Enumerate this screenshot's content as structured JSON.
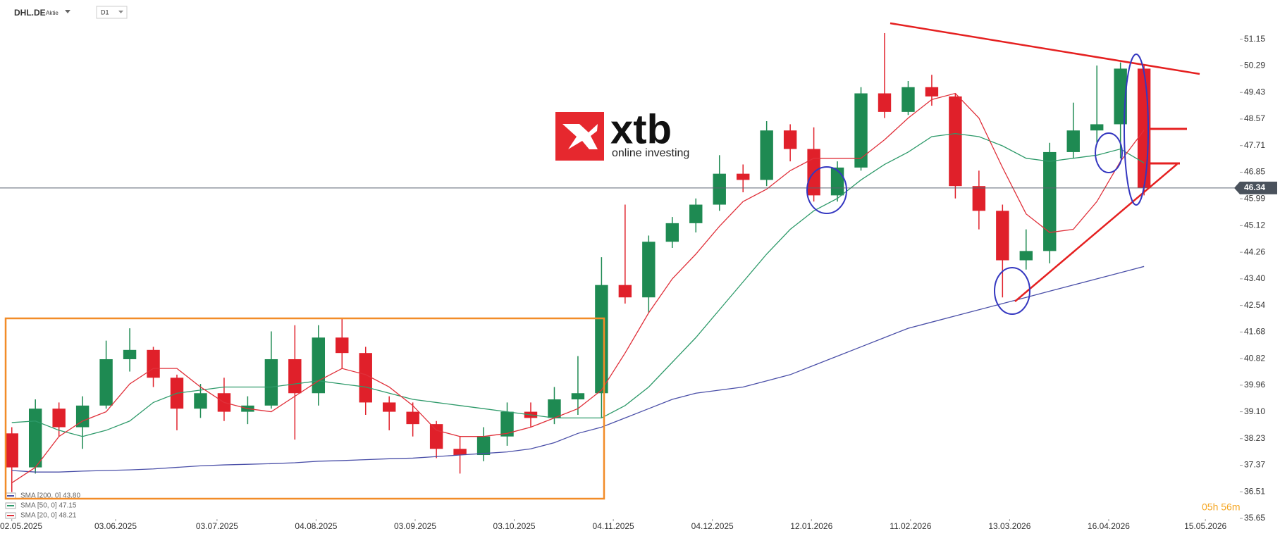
{
  "header": {
    "symbol": "DHL.DE",
    "kind": "Aktie",
    "interval": "D1"
  },
  "logo": {
    "name": "xtb",
    "tagline": "online investing"
  },
  "countdown": "05h 56m",
  "chart_data": {
    "type": "candlestick",
    "x": [
      0.5,
      1.5,
      2.5,
      3.5,
      4.5,
      5.5,
      6.5,
      7.5,
      8.5,
      9.5,
      10.5,
      11.5,
      12.5,
      13.5,
      14.5,
      15.5,
      16.5,
      17.5,
      18.5,
      19.5,
      20.5,
      21.5,
      22.5,
      23.5,
      24.5,
      25.5,
      26.5,
      27.5,
      28.5,
      29.5,
      30.5,
      31.5,
      32.5,
      33.5,
      34.5,
      35.5,
      36.5,
      37.5,
      38.5,
      39.5,
      40.5,
      41.5,
      42.5,
      43.5,
      44.5,
      45.5,
      46.5,
      47.5,
      48.5
    ],
    "open": [
      38.4,
      37.3,
      39.2,
      38.6,
      39.3,
      40.8,
      41.1,
      40.2,
      39.2,
      39.7,
      39.1,
      39.3,
      40.8,
      39.7,
      41.5,
      41.0,
      39.4,
      39.1,
      38.7,
      37.9,
      37.7,
      38.3,
      39.1,
      38.9,
      39.5,
      39.7,
      43.2,
      42.8,
      44.6,
      45.2,
      45.8,
      46.8,
      46.6,
      48.2,
      47.6,
      46.1,
      47.0,
      49.4,
      48.8,
      49.6,
      49.3,
      46.4,
      45.6,
      44.0,
      44.3,
      47.5,
      48.2,
      48.4,
      50.2
    ],
    "high": [
      38.6,
      39.5,
      39.4,
      39.6,
      41.4,
      41.8,
      41.2,
      40.3,
      40.0,
      40.2,
      39.6,
      41.7,
      41.9,
      41.9,
      42.1,
      41.2,
      39.6,
      39.4,
      38.8,
      38.3,
      38.6,
      39.4,
      39.4,
      39.9,
      40.9,
      44.1,
      45.8,
      44.8,
      45.4,
      46.0,
      47.4,
      47.1,
      48.5,
      48.4,
      48.3,
      47.2,
      49.6,
      51.35,
      49.8,
      50.0,
      49.4,
      46.9,
      45.8,
      45.0,
      47.8,
      49.1,
      50.3,
      50.4,
      50.3
    ],
    "low": [
      36.5,
      37.1,
      38.3,
      37.9,
      39.2,
      40.4,
      39.9,
      38.5,
      38.9,
      38.8,
      38.7,
      39.2,
      38.2,
      39.3,
      40.5,
      39.0,
      38.5,
      38.3,
      37.6,
      37.1,
      37.5,
      38.0,
      38.6,
      38.7,
      39.0,
      38.9,
      42.6,
      42.3,
      44.4,
      44.9,
      45.6,
      46.2,
      46.4,
      47.2,
      45.9,
      45.9,
      46.9,
      48.6,
      48.7,
      49.0,
      46.0,
      45.0,
      42.8,
      43.7,
      43.9,
      47.3,
      47.8,
      47.3,
      46.1
    ],
    "close": [
      37.3,
      39.2,
      38.6,
      39.3,
      40.8,
      41.1,
      40.2,
      39.2,
      39.7,
      39.1,
      39.3,
      40.8,
      39.7,
      41.5,
      41.0,
      39.4,
      39.1,
      38.7,
      37.9,
      37.7,
      38.3,
      39.1,
      38.9,
      39.5,
      39.7,
      43.2,
      42.8,
      44.6,
      45.2,
      45.8,
      46.8,
      46.6,
      48.2,
      47.6,
      46.1,
      47.0,
      49.4,
      48.8,
      49.6,
      49.3,
      46.4,
      45.6,
      44.0,
      44.3,
      47.5,
      48.2,
      48.4,
      50.2,
      46.34
    ],
    "up_color": "#1e8a52",
    "down_color": "#e0202a",
    "series": [
      {
        "name": "SMA [200, 0] 43.80",
        "color": "#4a4fa8",
        "values": [
          37.2,
          37.15,
          37.15,
          37.18,
          37.2,
          37.22,
          37.25,
          37.3,
          37.35,
          37.38,
          37.4,
          37.42,
          37.45,
          37.5,
          37.52,
          37.55,
          37.58,
          37.6,
          37.65,
          37.7,
          37.75,
          37.8,
          37.9,
          38.1,
          38.4,
          38.6,
          38.9,
          39.2,
          39.5,
          39.7,
          39.8,
          39.9,
          40.1,
          40.3,
          40.6,
          40.9,
          41.2,
          41.5,
          41.8,
          42.0,
          42.2,
          42.4,
          42.6,
          42.8,
          43.0,
          43.2,
          43.4,
          43.6,
          43.8
        ]
      },
      {
        "name": "SMA [50, 0] 47.15",
        "color": "#2e9a6a",
        "values": [
          38.75,
          38.8,
          38.5,
          38.3,
          38.5,
          38.8,
          39.4,
          39.7,
          39.8,
          39.9,
          39.9,
          39.9,
          40.0,
          40.1,
          40.0,
          39.9,
          39.7,
          39.5,
          39.4,
          39.3,
          39.2,
          39.1,
          39.0,
          38.9,
          38.9,
          38.9,
          39.3,
          39.9,
          40.7,
          41.5,
          42.4,
          43.3,
          44.2,
          45.0,
          45.6,
          46.0,
          46.6,
          47.1,
          47.5,
          48.0,
          48.1,
          48.0,
          47.7,
          47.3,
          47.2,
          47.3,
          47.4,
          47.6,
          47.15
        ]
      },
      {
        "name": "SMA [20, 0] 48.21",
        "color": "#e0303a",
        "values": [
          36.8,
          37.3,
          38.3,
          38.8,
          39.1,
          40.0,
          40.5,
          40.5,
          39.9,
          39.4,
          39.2,
          39.1,
          39.6,
          40.1,
          40.5,
          40.3,
          39.9,
          39.3,
          38.5,
          38.3,
          38.3,
          38.4,
          38.6,
          38.9,
          39.2,
          39.8,
          41.0,
          42.3,
          43.4,
          44.2,
          45.1,
          45.9,
          46.3,
          46.9,
          47.3,
          47.3,
          47.3,
          47.9,
          48.6,
          49.2,
          49.4,
          48.6,
          47.0,
          45.5,
          44.9,
          45.0,
          45.9,
          47.2,
          48.21
        ]
      }
    ],
    "last_price": 46.34,
    "ylim": [
      35.65,
      52.42
    ],
    "yticks": [
      51.15,
      50.29,
      49.43,
      48.57,
      47.71,
      46.85,
      45.99,
      45.12,
      44.26,
      {
        "value": 43.4,
        "label": "43.40"
      },
      42.54,
      41.68,
      40.82,
      39.96,
      {
        "value": 39.1,
        "label": "39.10"
      },
      38.23,
      37.37,
      36.51,
      35.65
    ],
    "xlim": [
      0,
      52.5
    ],
    "xticks": [
      {
        "value": 0.5,
        "label": "02.05.2025"
      },
      {
        "value": 4.9,
        "label": "03.06.2025"
      },
      {
        "value": 9.2,
        "label": "03.07.2025"
      },
      {
        "value": 13.4,
        "label": "04.08.2025"
      },
      {
        "value": 17.6,
        "label": "03.09.2025"
      },
      {
        "value": 21.8,
        "label": "03.10.2025"
      },
      {
        "value": 26.0,
        "label": "04.11.2025"
      },
      {
        "value": 30.2,
        "label": "04.12.2025"
      },
      {
        "value": 34.4,
        "label": "12.01.2026"
      },
      {
        "value": 38.6,
        "label": "11.02.2026"
      },
      {
        "value": 42.8,
        "label": "13.03.2026"
      },
      {
        "value": 47.0,
        "label": "16.04.2026"
      },
      {
        "value": 51.1,
        "label": "15.05.2026"
      }
    ]
  }
}
